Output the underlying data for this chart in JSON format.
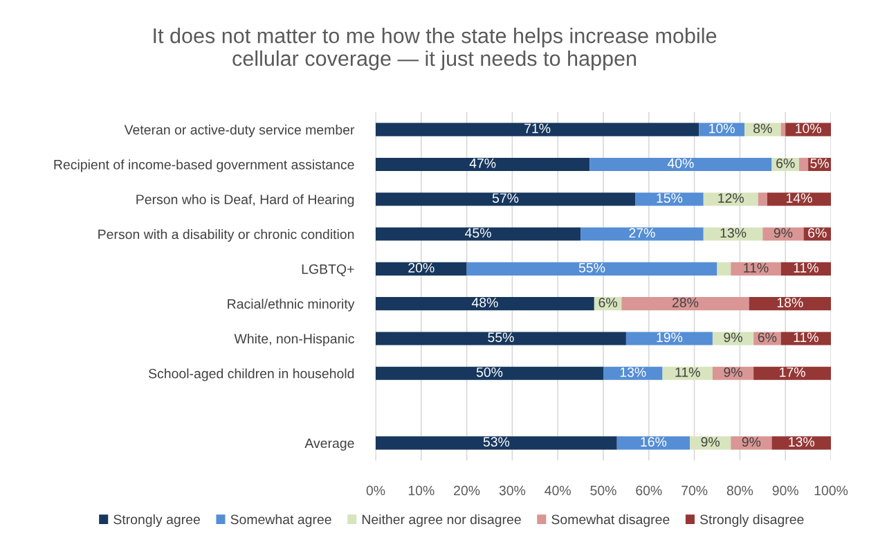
{
  "chart_data": {
    "type": "bar",
    "orientation": "horizontal",
    "stacked": true,
    "title": "It does not matter to me how the state helps increase mobile\ncellular coverage — it just needs to happen",
    "categories": [
      "Veteran or active-duty service member",
      "Recipient of income-based government assistance",
      "Person who is Deaf, Hard of Hearing",
      "Person with a disability or chronic condition",
      "LGBTQ+",
      "Racial/ethnic minority",
      "White, non-Hispanic",
      "School-aged children in household",
      null,
      "Average"
    ],
    "series": [
      {
        "name": "Strongly agree",
        "color": "#17375e",
        "values": [
          71,
          47,
          57,
          45,
          20,
          48,
          55,
          50,
          null,
          53
        ],
        "value_labels": [
          "71%",
          "47%",
          "57%",
          "45%",
          "20%",
          "48%",
          "55%",
          "50%",
          null,
          "53%"
        ]
      },
      {
        "name": "Somewhat agree",
        "color": "#558ed5",
        "values": [
          10,
          40,
          15,
          27,
          55,
          0,
          19,
          13,
          null,
          16
        ],
        "value_labels": [
          "10%",
          "40%",
          "15%",
          "27%",
          "55%",
          null,
          "19%",
          "13%",
          null,
          "16%"
        ]
      },
      {
        "name": "Neither agree nor disagree",
        "color": "#d7e4bd",
        "values": [
          8,
          6,
          12,
          13,
          3,
          6,
          9,
          11,
          null,
          9
        ],
        "value_labels": [
          "8%",
          "6%",
          "12%",
          "13%",
          null,
          "6%",
          "9%",
          "11%",
          null,
          "9%"
        ]
      },
      {
        "name": "Somewhat disagree",
        "color": "#d99694",
        "values": [
          1,
          2,
          2,
          9,
          11,
          28,
          6,
          9,
          null,
          9
        ],
        "value_labels": [
          null,
          null,
          null,
          "9%",
          "11%",
          "28%",
          "6%",
          "9%",
          null,
          "9%"
        ]
      },
      {
        "name": "Strongly disagree",
        "color": "#953735",
        "values": [
          10,
          5,
          14,
          6,
          11,
          18,
          11,
          17,
          null,
          13
        ],
        "value_labels": [
          "10%",
          "5%",
          "14%",
          "6%",
          "11%",
          "18%",
          "11%",
          "17%",
          null,
          "13%"
        ]
      }
    ],
    "xlim": [
      0,
      100
    ],
    "xticks": [
      {
        "value": 0,
        "label": "0%"
      },
      {
        "value": 10,
        "label": "10%"
      },
      {
        "value": 20,
        "label": "20%"
      },
      {
        "value": 30,
        "label": "30%"
      },
      {
        "value": 40,
        "label": "40%"
      },
      {
        "value": 50,
        "label": "50%"
      },
      {
        "value": 60,
        "label": "60%"
      },
      {
        "value": 70,
        "label": "70%"
      },
      {
        "value": 80,
        "label": "80%"
      },
      {
        "value": 90,
        "label": "90%"
      },
      {
        "value": 100,
        "label": "100%"
      }
    ],
    "grid": "x",
    "legend": "bottom"
  }
}
